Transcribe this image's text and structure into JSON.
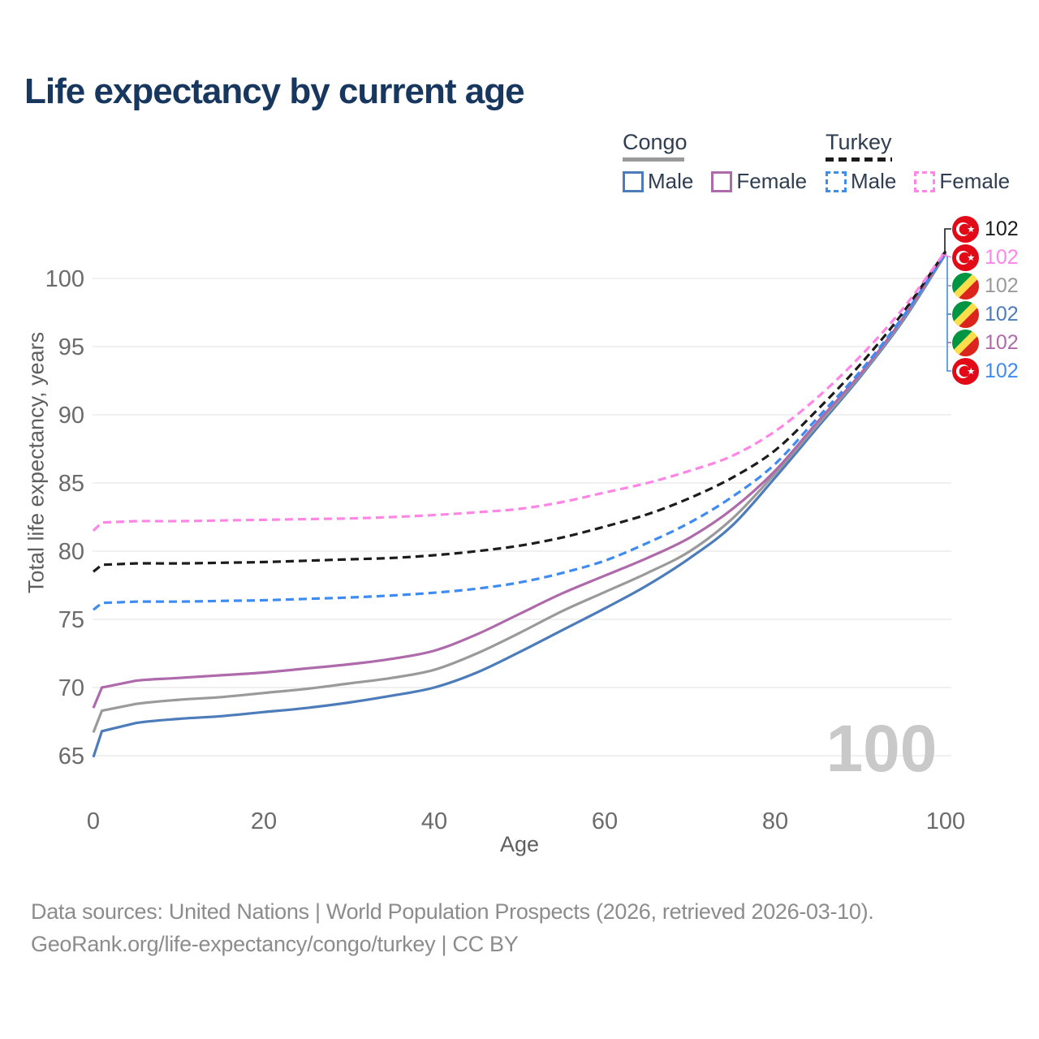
{
  "title": "Life expectancy by current age",
  "legend": {
    "groups": [
      {
        "label": "Congo",
        "line_style": "solid",
        "underline_color": "#9a9a9a",
        "items": [
          {
            "label": "Male",
            "color": "#4d7cba",
            "dashed": false
          },
          {
            "label": "Female",
            "color": "#ae6aaa",
            "dashed": false
          }
        ]
      },
      {
        "label": "Turkey",
        "line_style": "dashed",
        "underline_color": "#1c1c1c",
        "items": [
          {
            "label": "Male",
            "color": "#3e8bf2",
            "dashed": true
          },
          {
            "label": "Female",
            "color": "#ff85e6",
            "dashed": true
          }
        ]
      }
    ]
  },
  "chart_data": {
    "type": "line",
    "title": "Life expectancy by current age",
    "xlabel": "Age",
    "ylabel": "Total life expectancy, years",
    "x_ticks": [
      0,
      20,
      40,
      60,
      80,
      100
    ],
    "y_ticks": [
      65,
      70,
      75,
      80,
      85,
      90,
      95,
      100
    ],
    "xlim": [
      0,
      100
    ],
    "ylim": [
      63.5,
      103
    ],
    "grid": "horizontal",
    "legend_position": "top-right",
    "watermark": "100",
    "x": [
      0,
      1,
      5,
      10,
      15,
      20,
      25,
      30,
      35,
      40,
      45,
      50,
      55,
      60,
      65,
      70,
      75,
      80,
      85,
      90,
      95,
      100
    ],
    "series": [
      {
        "name": "Congo Male",
        "country": "Congo",
        "sex": "Male",
        "color": "#4d7cba",
        "dashed": false,
        "values": [
          64.9,
          66.8,
          67.4,
          67.7,
          67.9,
          68.2,
          68.5,
          68.9,
          69.4,
          70.0,
          71.1,
          72.6,
          74.2,
          75.8,
          77.5,
          79.5,
          81.9,
          85.4,
          89.1,
          92.8,
          96.9,
          101.8
        ]
      },
      {
        "name": "Congo Total",
        "country": "Congo",
        "sex": "Both",
        "color": "#9a9a9a",
        "dashed": false,
        "values": [
          66.7,
          68.3,
          68.8,
          69.1,
          69.3,
          69.6,
          69.9,
          70.3,
          70.7,
          71.3,
          72.5,
          74.0,
          75.6,
          77.0,
          78.4,
          80.0,
          82.4,
          85.7,
          89.3,
          92.9,
          97.0,
          101.85
        ]
      },
      {
        "name": "Congo Female",
        "country": "Congo",
        "sex": "Female",
        "color": "#ae6aaa",
        "dashed": false,
        "values": [
          68.5,
          70.0,
          70.5,
          70.7,
          70.9,
          71.1,
          71.4,
          71.7,
          72.1,
          72.7,
          73.9,
          75.4,
          76.9,
          78.2,
          79.5,
          81.0,
          83.1,
          85.9,
          89.5,
          93.0,
          97.1,
          101.9
        ]
      },
      {
        "name": "Turkey Male",
        "country": "Turkey",
        "sex": "Male",
        "color": "#3e8bf2",
        "dashed": true,
        "values": [
          75.7,
          76.2,
          76.3,
          76.3,
          76.35,
          76.4,
          76.5,
          76.6,
          76.75,
          76.95,
          77.25,
          77.7,
          78.4,
          79.3,
          80.6,
          82.1,
          84.0,
          86.4,
          89.8,
          93.2,
          97.2,
          101.85
        ]
      },
      {
        "name": "Turkey Total",
        "country": "Turkey",
        "sex": "Both",
        "color": "#1c1c1c",
        "dashed": true,
        "values": [
          78.5,
          79.0,
          79.1,
          79.1,
          79.15,
          79.2,
          79.3,
          79.4,
          79.5,
          79.7,
          80.0,
          80.4,
          81.0,
          81.8,
          82.7,
          83.9,
          85.4,
          87.4,
          90.4,
          93.7,
          97.5,
          102.0
        ]
      },
      {
        "name": "Turkey Female",
        "country": "Turkey",
        "sex": "Female",
        "color": "#ff85e6",
        "dashed": true,
        "values": [
          81.5,
          82.1,
          82.2,
          82.2,
          82.25,
          82.3,
          82.35,
          82.4,
          82.5,
          82.65,
          82.85,
          83.1,
          83.6,
          84.3,
          85.0,
          85.9,
          87.0,
          88.8,
          91.3,
          94.3,
          97.8,
          102.0
        ]
      }
    ],
    "end_labels": [
      {
        "value": "102",
        "flag": "turkey",
        "color": "#1c1c1c",
        "series": "Turkey Total"
      },
      {
        "value": "102",
        "flag": "turkey",
        "color": "#ff85e6",
        "series": "Turkey Female"
      },
      {
        "value": "102",
        "flag": "congo",
        "color": "#9a9a9a",
        "series": "Congo Total"
      },
      {
        "value": "102",
        "flag": "congo",
        "color": "#4d7cba",
        "series": "Congo Male"
      },
      {
        "value": "102",
        "flag": "congo",
        "color": "#ae6aaa",
        "series": "Congo Female"
      },
      {
        "value": "102",
        "flag": "turkey",
        "color": "#3e8bf2",
        "series": "Turkey Male"
      }
    ]
  },
  "footer": {
    "line1": "Data sources: United Nations | World Population Prospects (2026, retrieved 2026-03-10).",
    "line2": "GeoRank.org/life-expectancy/congo/turkey | CC BY"
  }
}
